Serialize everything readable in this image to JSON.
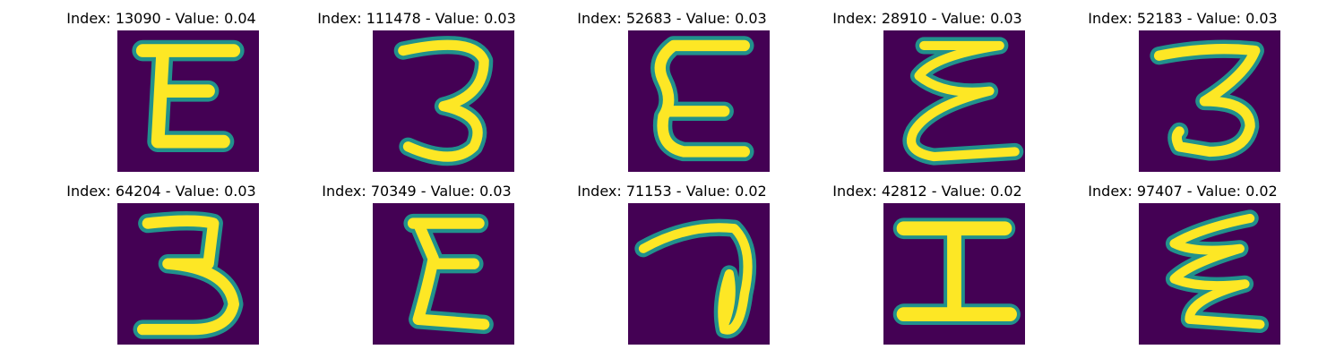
{
  "panels": [
    {
      "index_label": "Index: 13090 - Value: 0.04",
      "glyph": "E"
    },
    {
      "index_label": "Index: 111478 - Value: 0.03",
      "glyph": "3"
    },
    {
      "index_label": "Index: 52683 - Value: 0.03",
      "glyph": "E"
    },
    {
      "index_label": "Index: 28910 - Value: 0.03",
      "glyph": "E"
    },
    {
      "index_label": "Index: 52183 - Value: 0.03",
      "glyph": "3"
    },
    {
      "index_label": "Index: 64204 - Value: 0.03",
      "glyph": "3"
    },
    {
      "index_label": "Index: 70349 - Value: 0.03",
      "glyph": "E"
    },
    {
      "index_label": "Index: 71153 - Value: 0.02",
      "glyph": "7"
    },
    {
      "index_label": "Index: 42812 - Value: 0.02",
      "glyph": "I"
    },
    {
      "index_label": "Index: 97407 - Value: 0.02",
      "glyph": "E"
    }
  ],
  "colors": {
    "background": "#440154",
    "stroke": "#fde725",
    "edge": "#21918c"
  }
}
